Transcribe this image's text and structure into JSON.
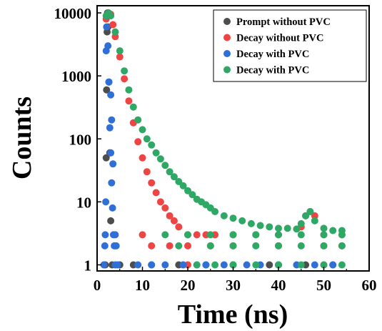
{
  "chart_data": {
    "type": "scatter",
    "title": "",
    "xlabel": "Time (ns)",
    "ylabel": "Counts",
    "xlim": [
      0,
      60
    ],
    "ylim": [
      0.8,
      13000
    ],
    "yscale": "log",
    "grid": false,
    "legend_position": "top-right",
    "x_ticks": [
      0,
      10,
      20,
      30,
      40,
      50,
      60
    ],
    "x_tick_labels": [
      "0",
      "10",
      "20",
      "30",
      "40",
      "50",
      "60"
    ],
    "y_ticks": [
      1,
      10,
      100,
      1000,
      10000
    ],
    "y_tick_labels": [
      "1",
      "10",
      "100",
      "1000",
      "10000"
    ],
    "series": [
      {
        "name": "Prompt without PVC",
        "color": "#4d4d4d",
        "points": [
          [
            1.8,
            1
          ],
          [
            2.0,
            50
          ],
          [
            2.1,
            600
          ],
          [
            2.2,
            5000
          ],
          [
            2.3,
            10000
          ],
          [
            2.4,
            6000
          ],
          [
            2.6,
            800
          ],
          [
            2.8,
            60
          ],
          [
            3.0,
            5
          ],
          [
            3.3,
            1
          ],
          [
            5.0,
            1
          ],
          [
            8.0,
            1
          ],
          [
            12.0,
            1
          ],
          [
            18.0,
            1
          ],
          [
            24.0,
            1
          ],
          [
            30.0,
            1
          ],
          [
            38.0,
            1
          ],
          [
            46.0,
            1
          ],
          [
            52.0,
            1
          ]
        ]
      },
      {
        "name": "Decay without PVC",
        "color": "#ef4444",
        "points": [
          [
            2.0,
            8000
          ],
          [
            2.5,
            10000
          ],
          [
            3.0,
            9500
          ],
          [
            3.5,
            6500
          ],
          [
            4.0,
            4200
          ],
          [
            5.0,
            2000
          ],
          [
            6.0,
            900
          ],
          [
            7.0,
            400
          ],
          [
            8.0,
            180
          ],
          [
            9.0,
            90
          ],
          [
            10.0,
            50
          ],
          [
            11.0,
            30
          ],
          [
            12.0,
            20
          ],
          [
            13.0,
            14
          ],
          [
            14.0,
            10
          ],
          [
            15.0,
            8
          ],
          [
            16.0,
            6
          ],
          [
            17.0,
            5
          ],
          [
            18.0,
            4
          ],
          [
            20.0,
            3
          ],
          [
            22.0,
            3
          ],
          [
            24.0,
            3
          ],
          [
            26.0,
            3
          ],
          [
            30.0,
            3
          ],
          [
            35.0,
            3
          ],
          [
            40.0,
            3
          ],
          [
            45.0,
            4
          ],
          [
            46.0,
            6
          ],
          [
            47.0,
            7
          ],
          [
            48.0,
            6
          ],
          [
            50.0,
            3
          ],
          [
            54.0,
            3
          ],
          [
            10.0,
            3
          ],
          [
            12.0,
            2
          ],
          [
            16.0,
            2
          ],
          [
            20.0,
            2
          ],
          [
            25.0,
            2
          ],
          [
            30.0,
            2
          ],
          [
            40.0,
            2
          ],
          [
            50.0,
            2
          ],
          [
            54.0,
            2
          ],
          [
            20.0,
            1
          ],
          [
            30.0,
            1
          ],
          [
            40.0,
            1
          ],
          [
            50.0,
            1
          ]
        ]
      },
      {
        "name": "Decay with PVC",
        "color": "#2f6fd6",
        "points": [
          [
            1.5,
            1
          ],
          [
            1.7,
            2
          ],
          [
            1.8,
            3
          ],
          [
            1.9,
            10
          ],
          [
            2.0,
            2500
          ],
          [
            2.1,
            6000
          ],
          [
            2.2,
            9000
          ],
          [
            2.4,
            3000
          ],
          [
            2.6,
            800
          ],
          [
            2.8,
            150
          ],
          [
            3.0,
            60
          ],
          [
            3.2,
            20
          ],
          [
            3.4,
            8
          ],
          [
            3.6,
            3
          ],
          [
            3.8,
            2
          ],
          [
            4.0,
            1
          ],
          [
            3.0,
            500
          ],
          [
            3.2,
            200
          ],
          [
            3.5,
            40
          ],
          [
            4.0,
            3
          ],
          [
            4.2,
            2
          ],
          [
            4.5,
            1
          ],
          [
            9.0,
            1
          ],
          [
            12.0,
            1
          ],
          [
            15.0,
            1
          ],
          [
            19.0,
            1
          ],
          [
            22.0,
            1
          ],
          [
            24.0,
            1
          ],
          [
            28.0,
            1
          ],
          [
            33.0,
            1
          ],
          [
            36.0,
            1
          ],
          [
            40.0,
            1
          ],
          [
            44.0,
            1
          ],
          [
            48.0,
            1
          ],
          [
            52.0,
            1
          ]
        ]
      },
      {
        "name": "Decay with PVC",
        "color": "#2fa866",
        "points": [
          [
            2.0,
            9000
          ],
          [
            2.5,
            10000
          ],
          [
            3.0,
            9000
          ],
          [
            4.0,
            5000
          ],
          [
            5.0,
            2500
          ],
          [
            6.0,
            1200
          ],
          [
            7.0,
            600
          ],
          [
            8.0,
            320
          ],
          [
            9.0,
            200
          ],
          [
            10.0,
            140
          ],
          [
            11.0,
            100
          ],
          [
            12.0,
            80
          ],
          [
            13.0,
            60
          ],
          [
            14.0,
            48
          ],
          [
            15.0,
            38
          ],
          [
            16.0,
            30
          ],
          [
            17.0,
            25
          ],
          [
            18.0,
            21
          ],
          [
            19.0,
            18
          ],
          [
            20.0,
            15
          ],
          [
            21.0,
            13
          ],
          [
            22.0,
            11
          ],
          [
            23.0,
            10
          ],
          [
            24.0,
            9
          ],
          [
            25.0,
            8
          ],
          [
            26.0,
            7
          ],
          [
            28.0,
            6
          ],
          [
            30.0,
            5.5
          ],
          [
            32.0,
            5
          ],
          [
            34.0,
            4.5
          ],
          [
            36.0,
            4.2
          ],
          [
            38.0,
            4
          ],
          [
            40.0,
            3.8
          ],
          [
            42.0,
            3.8
          ],
          [
            44.0,
            3.7
          ],
          [
            45.0,
            4.5
          ],
          [
            46.0,
            6
          ],
          [
            47.0,
            7
          ],
          [
            48.0,
            5
          ],
          [
            50.0,
            3.8
          ],
          [
            52.0,
            3.5
          ],
          [
            54.0,
            3.5
          ],
          [
            15.0,
            3
          ],
          [
            20.0,
            3
          ],
          [
            25.0,
            3
          ],
          [
            30.0,
            3
          ],
          [
            35.0,
            3
          ],
          [
            40.0,
            3
          ],
          [
            45.0,
            3
          ],
          [
            50.0,
            3
          ],
          [
            54.0,
            3
          ],
          [
            18.0,
            2
          ],
          [
            25.0,
            2
          ],
          [
            30.0,
            2
          ],
          [
            35.0,
            2
          ],
          [
            40.0,
            2
          ],
          [
            45.0,
            2
          ],
          [
            50.0,
            2
          ],
          [
            54.0,
            2
          ],
          [
            22.0,
            1
          ],
          [
            26.0,
            1
          ],
          [
            30.0,
            1
          ],
          [
            35.0,
            1
          ],
          [
            40.0,
            1
          ],
          [
            45.0,
            1
          ],
          [
            50.0,
            1
          ],
          [
            54.0,
            1
          ]
        ]
      }
    ]
  }
}
